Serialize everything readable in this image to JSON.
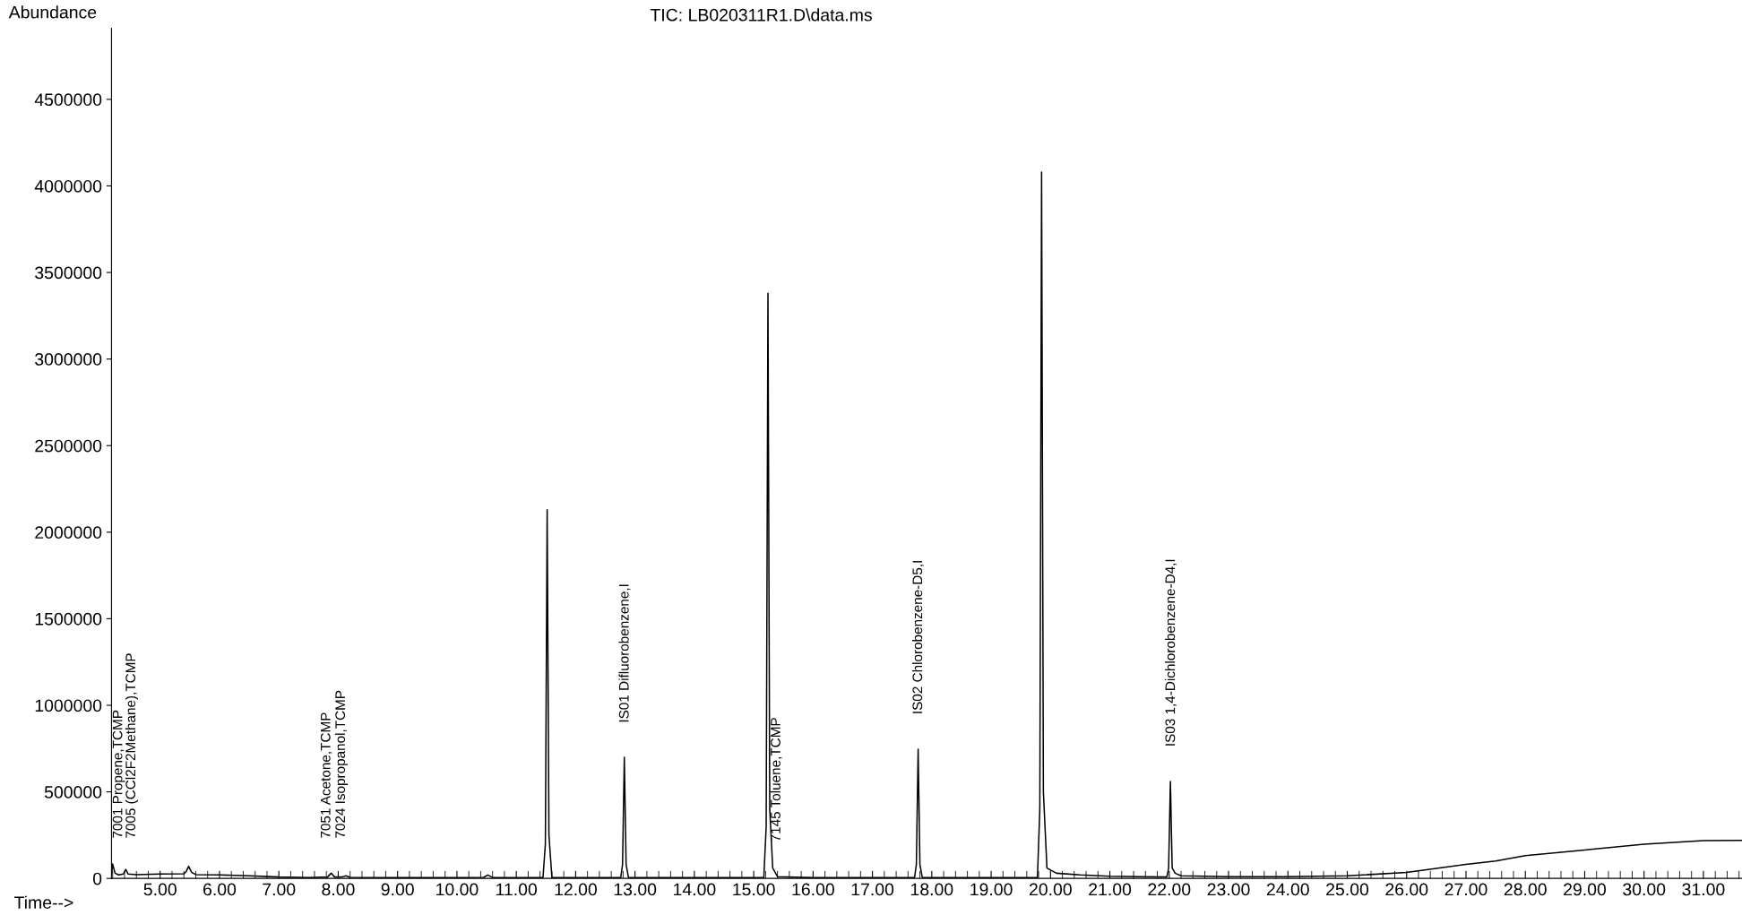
{
  "chart_data": {
    "type": "line",
    "title": "TIC: LB020311R1.D\\data.ms",
    "xlabel": "Time-->",
    "ylabel": "Abundance",
    "x": [
      4.18,
      4.2,
      4.24,
      4.3,
      4.38,
      4.42,
      4.46,
      4.6,
      5.0,
      5.4,
      5.44,
      5.48,
      5.53,
      5.6,
      6.0,
      6.5,
      7.0,
      7.5,
      7.82,
      7.88,
      7.94,
      8.06,
      8.13,
      8.2,
      9.0,
      10.0,
      10.45,
      10.52,
      10.6,
      11.0,
      11.45,
      11.49,
      11.52,
      11.55,
      11.6,
      12.0,
      12.76,
      12.79,
      12.82,
      12.85,
      12.89,
      13.5,
      14.5,
      15.17,
      15.21,
      15.24,
      15.27,
      15.32,
      15.4,
      16.0,
      17.0,
      17.71,
      17.74,
      17.77,
      17.8,
      17.84,
      18.5,
      19.0,
      19.78,
      19.82,
      19.85,
      19.88,
      19.94,
      20.1,
      20.5,
      21.0,
      21.96,
      21.99,
      22.02,
      22.05,
      22.1,
      22.2,
      23.0,
      24.0,
      25.0,
      26.0,
      27.0,
      27.5,
      28.0,
      29.0,
      30.0,
      31.0,
      31.65
    ],
    "values": [
      20000,
      83000,
      30000,
      20000,
      25000,
      52000,
      25000,
      22000,
      25000,
      27000,
      40000,
      70000,
      35000,
      22000,
      20000,
      15000,
      8000,
      5000,
      8000,
      30000,
      8000,
      8000,
      15000,
      6000,
      5000,
      5000,
      6000,
      20000,
      5000,
      4000,
      5000,
      200000,
      2130000,
      250000,
      5000,
      4000,
      5000,
      80000,
      700000,
      80000,
      5000,
      4000,
      4000,
      5000,
      300000,
      3380000,
      400000,
      60000,
      10000,
      4000,
      4000,
      5000,
      80000,
      746000,
      80000,
      5000,
      4000,
      5000,
      5000,
      400000,
      4080000,
      500000,
      60000,
      30000,
      20000,
      12000,
      8000,
      60000,
      560000,
      60000,
      30000,
      15000,
      10000,
      10000,
      15000,
      34000,
      81000,
      100000,
      132000,
      164000,
      198000,
      218000,
      220000
    ],
    "color": "#000000",
    "marker": "none",
    "line_style": "solid",
    "grid": false,
    "legend": false,
    "xlim": [
      4.18,
      31.65
    ],
    "ylim": [
      0,
      4910000
    ],
    "xticks": [
      {
        "value": 5,
        "label": "5.00"
      },
      {
        "value": 6,
        "label": "6.00"
      },
      {
        "value": 7,
        "label": "7.00"
      },
      {
        "value": 8,
        "label": "8.00"
      },
      {
        "value": 9,
        "label": "9.00"
      },
      {
        "value": 10,
        "label": "10.00"
      },
      {
        "value": 11,
        "label": "11.00"
      },
      {
        "value": 12,
        "label": "12.00"
      },
      {
        "value": 13,
        "label": "13.00"
      },
      {
        "value": 14,
        "label": "14.00"
      },
      {
        "value": 15,
        "label": "15.00"
      },
      {
        "value": 16,
        "label": "16.00"
      },
      {
        "value": 17,
        "label": "17.00"
      },
      {
        "value": 18,
        "label": "18.00"
      },
      {
        "value": 19,
        "label": "19.00"
      },
      {
        "value": 20,
        "label": "20.00"
      },
      {
        "value": 21,
        "label": "21.00"
      },
      {
        "value": 22,
        "label": "22.00"
      },
      {
        "value": 23,
        "label": "23.00"
      },
      {
        "value": 24,
        "label": "24.00"
      },
      {
        "value": 25,
        "label": "25.00"
      },
      {
        "value": 26,
        "label": "26.00"
      },
      {
        "value": 27,
        "label": "27.00"
      },
      {
        "value": 28,
        "label": "28.00"
      },
      {
        "value": 29,
        "label": "29.00"
      },
      {
        "value": 30,
        "label": "30.00"
      },
      {
        "value": 31,
        "label": "31.00"
      }
    ],
    "yticks": [
      0,
      500000,
      1000000,
      1500000,
      2000000,
      2500000,
      3000000,
      3500000,
      4000000,
      4500000
    ],
    "annotations": [
      "7001 Propene,TCMP",
      "7005 (CCl2F2Methane),TCMP",
      "7051 Acetone,TCMP",
      "7024 Isopropanol,TCMP",
      "IS01 Difluorobenzene,I",
      "7145 Toluene,TCMP",
      "IS02 Chlorobenzene-D5,I",
      "IS03 1,4-Dichlorobenzene-D4,I"
    ]
  }
}
